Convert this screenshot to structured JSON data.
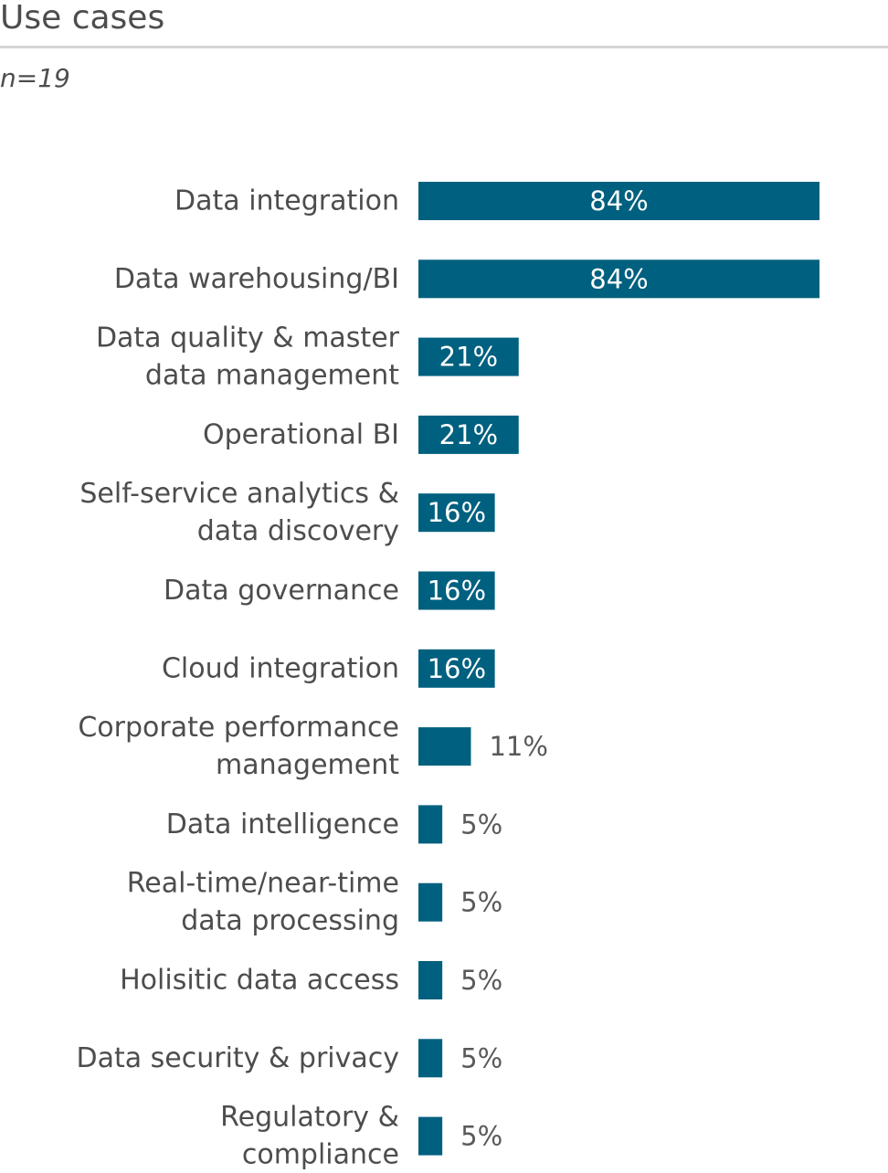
{
  "chart_data": {
    "type": "bar",
    "orientation": "horizontal",
    "title": "Use cases",
    "subtitle": "n=19",
    "categories": [
      "Data integration",
      "Data warehousing/BI",
      "Data quality & master data management",
      "Operational BI",
      "Self-service analytics & data discovery",
      "Data governance",
      "Cloud integration",
      "Corporate performance management",
      "Data intelligence",
      "Real-time/near-time data processing",
      "Holisitic data access",
      "Data security & privacy",
      "Regulatory & compliance"
    ],
    "category_lines": [
      [
        "Data integration"
      ],
      [
        "Data warehousing/BI"
      ],
      [
        "Data quality & master",
        "data management"
      ],
      [
        "Operational BI"
      ],
      [
        "Self-service analytics &",
        "data discovery"
      ],
      [
        "Data governance"
      ],
      [
        "Cloud integration"
      ],
      [
        "Corporate performance",
        "management"
      ],
      [
        "Data intelligence"
      ],
      [
        "Real-time/near-time",
        "data processing"
      ],
      [
        "Holisitic data access"
      ],
      [
        "Data security & privacy"
      ],
      [
        "Regulatory &",
        "compliance"
      ]
    ],
    "values": [
      84,
      84,
      21,
      21,
      16,
      16,
      16,
      11,
      5,
      5,
      5,
      5,
      5
    ],
    "value_labels": [
      "84%",
      "84%",
      "21%",
      "21%",
      "16%",
      "16%",
      "16%",
      "11%",
      "5%",
      "5%",
      "5%",
      "5%",
      "5%"
    ],
    "xlim": [
      0,
      84
    ],
    "grid": false,
    "legend": "none",
    "bar_color": "#00607f",
    "label_inside_color": "#ffffff",
    "label_outside_color": "#595959"
  }
}
